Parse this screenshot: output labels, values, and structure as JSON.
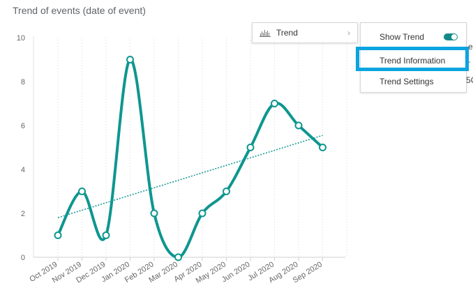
{
  "chart_title": "Trend of events (date of event)",
  "context_menu": {
    "trend_label": "Trend",
    "icon": "trend-chart-icon",
    "chevron": "›"
  },
  "submenu": {
    "items": [
      {
        "label": "Show Trend",
        "toggle": true
      },
      {
        "label": "Trend Information",
        "highlighted": true
      },
      {
        "label": "Trend Settings"
      }
    ]
  },
  "behind_fragments": [
    "e",
    "r",
    "5C"
  ],
  "colors": {
    "series": "#0e968f",
    "trendline": "#1a9a9a",
    "highlight": "#0ba4e0",
    "toggle": "#138a86"
  },
  "chart_data": {
    "type": "line",
    "title": "Trend of events (date of event)",
    "categories": [
      "Oct 2019",
      "Nov 2019",
      "Dec 2019",
      "Jan 2020",
      "Feb 2020",
      "Mar 2020",
      "Apr 2020",
      "May 2020",
      "Jun 2020",
      "Jul 2020",
      "Aug 2020",
      "Sep 2020"
    ],
    "series": [
      {
        "values": [
          1,
          3,
          1,
          9,
          2,
          0,
          2,
          3,
          5,
          7,
          6,
          5
        ],
        "smooth": true
      }
    ],
    "trendline": {
      "start": 1.8,
      "end": 5.55,
      "style": "dotted"
    },
    "ylim": [
      0,
      10
    ],
    "yticks": [
      0,
      2,
      4,
      6,
      8,
      10
    ],
    "grid": "vertical dotted",
    "xlabel": "",
    "ylabel": ""
  }
}
